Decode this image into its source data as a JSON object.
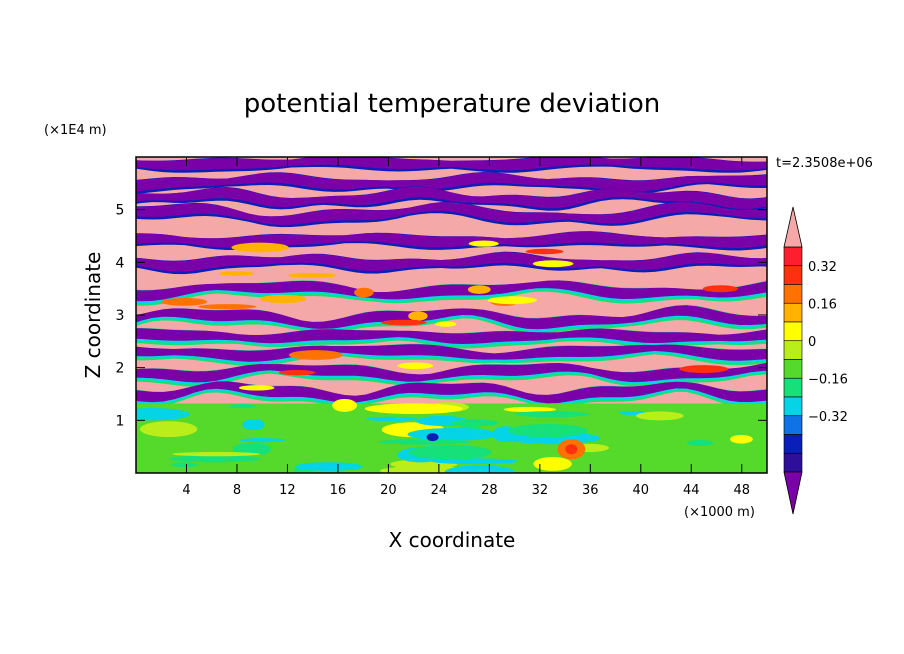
{
  "chart_data": {
    "type": "heatmap",
    "title": "potential temperature deviation",
    "xlabel": "X coordinate",
    "ylabel": "Z coordinate",
    "x_units": "(×1000 m)",
    "y_units": "(×1E4 m)",
    "time_label": "t=2.3508e+06",
    "xlim": [
      0,
      50
    ],
    "ylim": [
      0,
      6
    ],
    "x_ticks": [
      "4",
      "8",
      "12",
      "16",
      "20",
      "24",
      "28",
      "32",
      "36",
      "40",
      "44",
      "48"
    ],
    "y_ticks": [
      "1",
      "2",
      "3",
      "4",
      "5"
    ],
    "colorbar": {
      "labels": [
        "0.32",
        "0.16",
        "0",
        "−0.16",
        "−0.32"
      ],
      "colors": [
        "#7a00a8",
        "#2d0f9a",
        "#0a1fb8",
        "#0f73e6",
        "#05d4e6",
        "#16e07a",
        "#55d92a",
        "#b9ee1b",
        "#ffff00",
        "#ffb300",
        "#ff7200",
        "#ff3010",
        "#ff1e2d",
        "#f5a8a8"
      ]
    }
  }
}
